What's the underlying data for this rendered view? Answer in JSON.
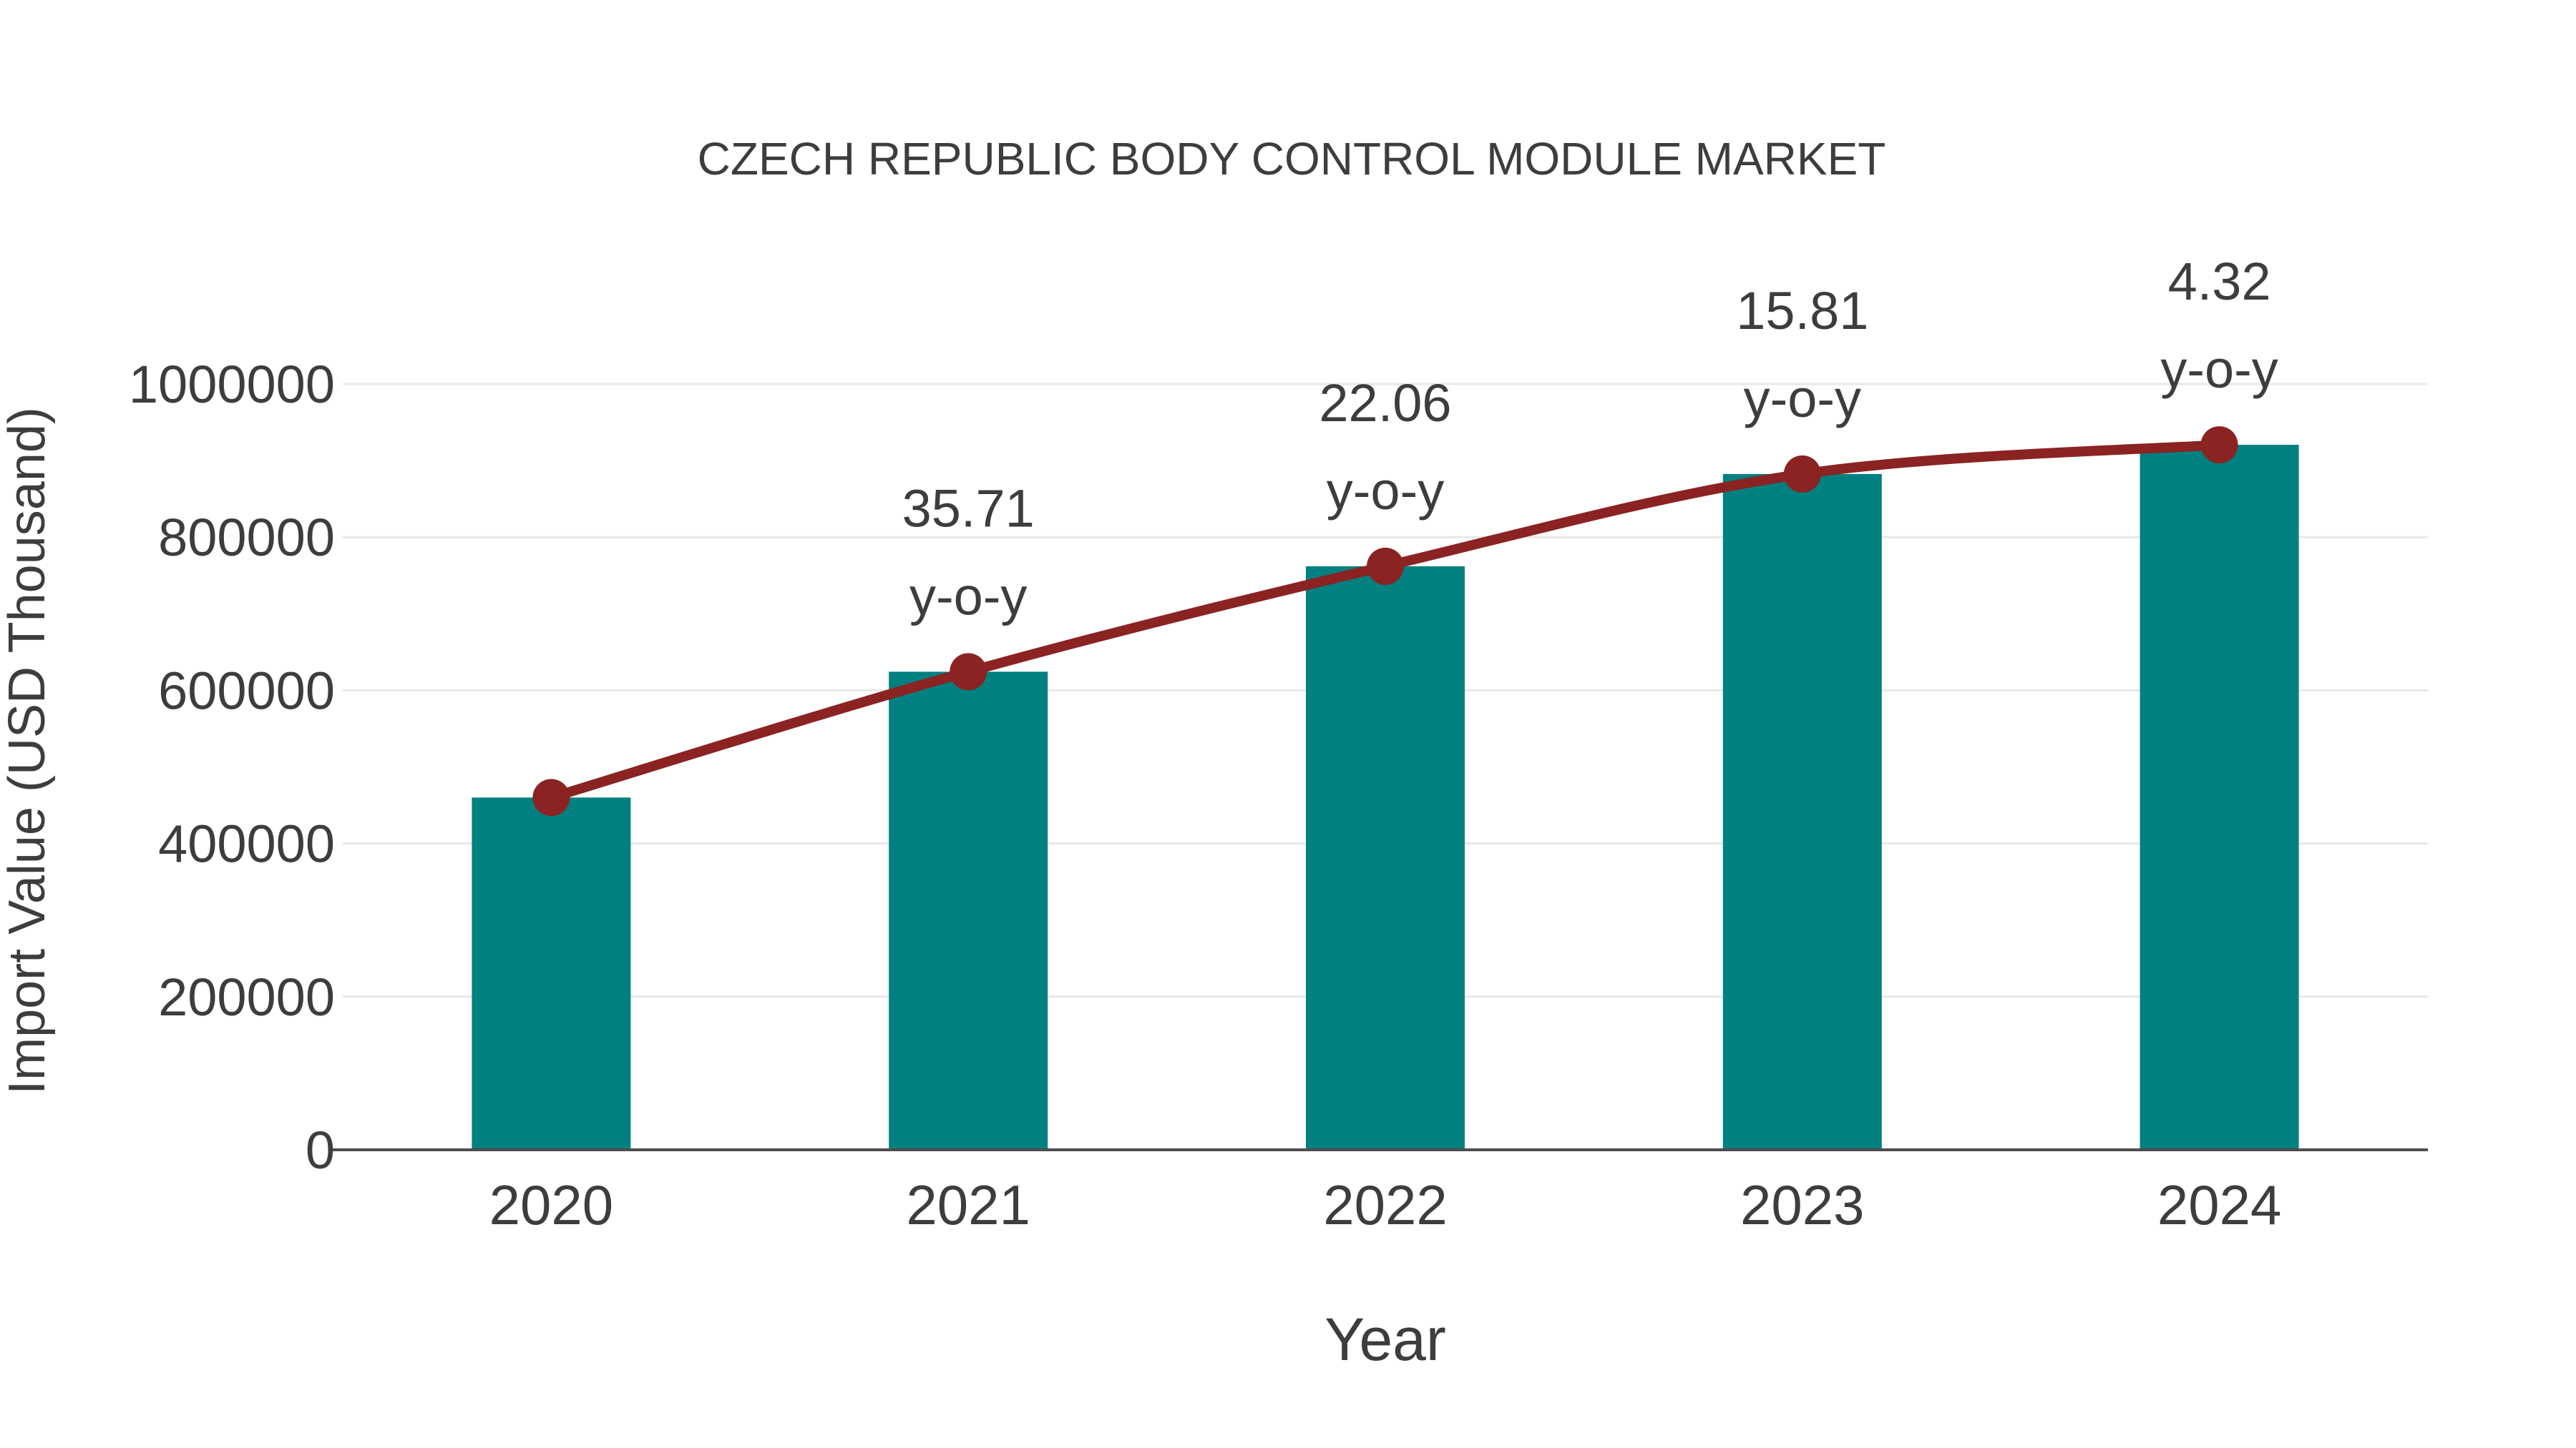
{
  "title": "CZECH REPUBLIC BODY CONTROL MODULE MARKET",
  "chart_data": {
    "type": "bar",
    "title": "CZECH REPUBLIC BODY CONTROL MODULE MARKET",
    "xlabel": "Year",
    "ylabel": "Import Value (USD Thousand)",
    "categories": [
      "2020",
      "2021",
      "2022",
      "2023",
      "2024"
    ],
    "series": [
      {
        "name": "Import Value (USD Thousand)",
        "type": "bar",
        "values": [
          460000,
          624266,
          761980,
          882449,
          920571
        ],
        "color": "#008080"
      },
      {
        "name": "Import Value trend line",
        "type": "line",
        "values": [
          460000,
          624266,
          761980,
          882449,
          920571
        ],
        "color": "#8b2323"
      }
    ],
    "annotations": [
      {
        "category": "2021",
        "value_label": "35.71",
        "suffix_label": "y-o-y"
      },
      {
        "category": "2022",
        "value_label": "22.06",
        "suffix_label": "y-o-y"
      },
      {
        "category": "2023",
        "value_label": "15.81",
        "suffix_label": "y-o-y"
      },
      {
        "category": "2024",
        "value_label": "4.32",
        "suffix_label": "y-o-y"
      }
    ],
    "growth_yoy_percent": [
      null,
      35.71,
      22.06,
      15.81,
      4.32
    ],
    "ylim": [
      0,
      1000000
    ],
    "yticks": [
      0,
      200000,
      400000,
      600000,
      800000,
      1000000
    ],
    "ytick_labels": [
      "0",
      "200000",
      "400000",
      "600000",
      "800000",
      "1000000"
    ],
    "grid": true,
    "legend_position": "none"
  },
  "colors": {
    "bar": "#008080",
    "line": "#8b2323",
    "marker": "#8b2323",
    "text": "#3d3d3d",
    "gridline": "#e8e8e8",
    "axis_line": "#4d4d4d",
    "background": "#ffffff"
  }
}
